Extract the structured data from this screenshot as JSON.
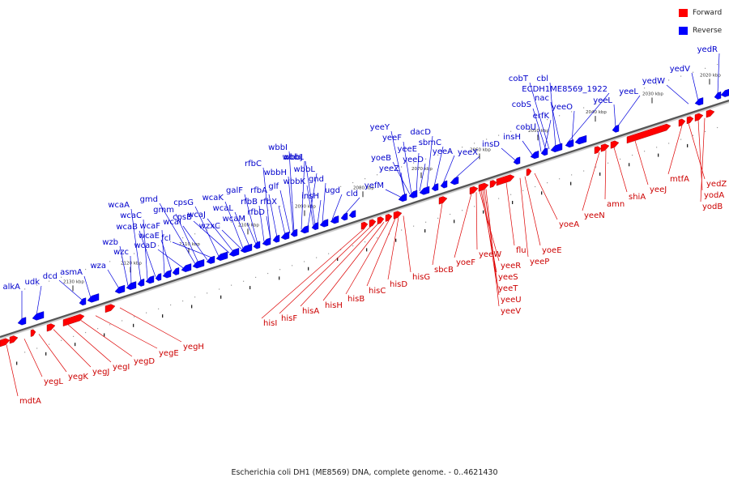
{
  "caption": "Escherichia coli DH1 (ME8569) DNA, complete genome. - 0..4621430",
  "legend": {
    "forward_label": "Forward",
    "reverse_label": "Reverse",
    "forward_color": "#ff0000",
    "reverse_color": "#0000ff"
  },
  "label_colors": {
    "forward": "#cc0000",
    "reverse": "#0000cc"
  },
  "ticks": [
    "2020 kbp",
    "2030 kbp",
    "2040 kbp",
    "2050 kbp",
    "2060 kbp",
    "2070 kbp",
    "2080 kbp",
    "2090 kbp",
    "2100 kbp",
    "2110 kbp",
    "2120 kbp",
    "2130 kbp"
  ],
  "reverse_genes": [
    "alkA",
    "udk",
    "dcd",
    "asmA",
    "wza",
    "wzb",
    "wzc",
    "wcaA",
    "wcaC",
    "wcaB",
    "wcaF",
    "wcaE",
    "wcaD",
    "gmd",
    "gmm",
    "wcaI",
    "fcl",
    "cpsG",
    "cpsB",
    "wcaJ",
    "wzxC",
    "wcaK",
    "wcaL",
    "wcaM",
    "galF",
    "rfbB",
    "rfbD",
    "rfbC",
    "rfbA",
    "rfbX",
    "glf",
    "wbbH",
    "wbbI",
    "wbbJ",
    "wbbL",
    "wbbK",
    "insH",
    "wbbL",
    "gnd",
    "ugd",
    "cld",
    "yefM",
    "yeeZ",
    "yoeB",
    "yeeY",
    "yeeF",
    "yeeE",
    "yeeD",
    "dacD",
    "sbmC",
    "yeeA",
    "yeeX",
    "insD",
    "insH",
    "cobU",
    "erfK",
    "cobS",
    "cobT",
    "cbl",
    "nac",
    "ECDH1ME8569_1922",
    "yeeO",
    "yeeL",
    "yeeL",
    "yedW",
    "yedV",
    "yedR"
  ],
  "forward_genes": [
    "mdtA",
    "yegL",
    "yegK",
    "yegJ",
    "yegI",
    "yegD",
    "yegE",
    "yegH",
    "hisI",
    "hisF",
    "hisA",
    "hisH",
    "hisB",
    "hisC",
    "hisD",
    "hisG",
    "sbcB",
    "yoeF",
    "yeeW",
    "yeeR",
    "yeeS",
    "yeeT",
    "yeeU",
    "yeeV",
    "flu",
    "yeeP",
    "yoeE",
    "yoeA",
    "yeeN",
    "amn",
    "shiA",
    "yeeJ",
    "mtfA",
    "yedZ",
    "yodA",
    "yodB"
  ]
}
